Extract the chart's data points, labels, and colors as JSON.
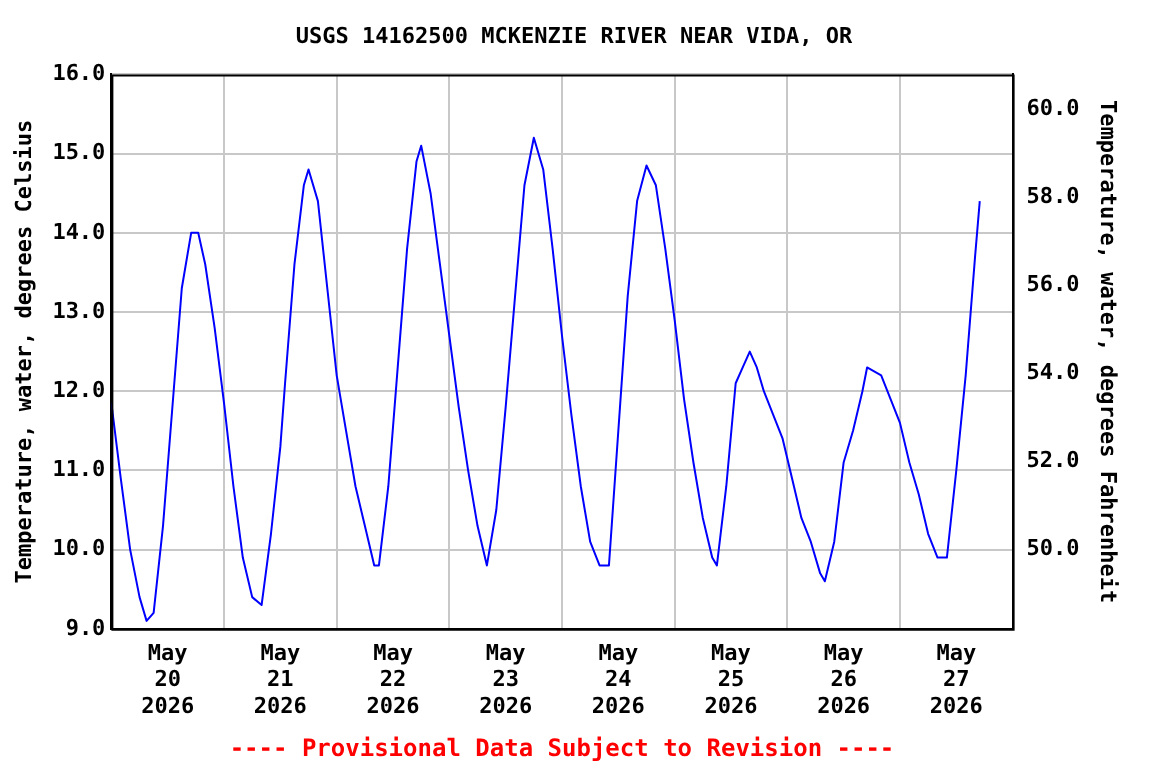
{
  "chart_data": {
    "type": "line",
    "title": "USGS 14162500 MCKENZIE RIVER NEAR VIDA, OR",
    "ylabel": "Temperature, water, degrees Celsius",
    "y2label": "Temperature, water, degrees Fahrenheit",
    "annotations": [
      "---- Provisional Data Subject to Revision ----"
    ],
    "grid": true,
    "legend": false,
    "marker": "none",
    "line_style": "solid",
    "xlim": [
      "2026-05-20",
      "2026-05-28"
    ],
    "xticks": [
      {
        "value": "2026-05-20T12:00",
        "label": "May 20 2026"
      },
      {
        "value": "2026-05-21",
        "label": null
      },
      {
        "value": "2026-05-21T12:00",
        "label": "May 21 2026"
      },
      {
        "value": "2026-05-22",
        "label": null
      },
      {
        "value": "2026-05-22T12:00",
        "label": "May 22 2026"
      },
      {
        "value": "2026-05-23",
        "label": null
      },
      {
        "value": "2026-05-23T12:00",
        "label": "May 23 2026"
      },
      {
        "value": "2026-05-24",
        "label": null
      },
      {
        "value": "2026-05-24T12:00",
        "label": "May 24 2026"
      },
      {
        "value": "2026-05-25",
        "label": null
      },
      {
        "value": "2026-05-25T12:00",
        "label": "May 25 2026"
      },
      {
        "value": "2026-05-26",
        "label": null
      },
      {
        "value": "2026-05-26T12:00",
        "label": "May 26 2026"
      },
      {
        "value": "2026-05-27",
        "label": null
      },
      {
        "value": "2026-05-27T12:00",
        "label": "May 27 2026"
      }
    ],
    "ylim": [
      9,
      16
    ],
    "yticks": [
      {
        "value": 9,
        "label": "9.0"
      },
      {
        "value": 10,
        "label": "10.0"
      },
      {
        "value": 11,
        "label": "11.0"
      },
      {
        "value": 12,
        "label": "12.0"
      },
      {
        "value": 13,
        "label": "13.0"
      },
      {
        "value": 14,
        "label": "14.0"
      },
      {
        "value": 15,
        "label": "15.0"
      },
      {
        "value": 16,
        "label": "16.0"
      }
    ],
    "y2lim": [
      48.2,
      60.8
    ],
    "y2ticks": [
      {
        "value": 50,
        "label": "50.0"
      },
      {
        "value": 52,
        "label": "52.0"
      },
      {
        "value": 54,
        "label": "54.0"
      },
      {
        "value": 56,
        "label": "56.0"
      },
      {
        "value": 58,
        "label": "58.0"
      },
      {
        "value": 60,
        "label": "60.0"
      }
    ],
    "series": [
      {
        "color": "#0000ff",
        "x": [
          "2026-05-20T00:00",
          "2026-05-20T02:00",
          "2026-05-20T04:00",
          "2026-05-20T06:00",
          "2026-05-20T07:30",
          "2026-05-20T09:00",
          "2026-05-20T11:00",
          "2026-05-20T13:00",
          "2026-05-20T15:00",
          "2026-05-20T17:00",
          "2026-05-20T18:30",
          "2026-05-20T20:00",
          "2026-05-20T22:00",
          "2026-05-21T00:00",
          "2026-05-21T02:00",
          "2026-05-21T04:00",
          "2026-05-21T06:00",
          "2026-05-21T08:00",
          "2026-05-21T10:00",
          "2026-05-21T12:00",
          "2026-05-21T13:00",
          "2026-05-21T15:00",
          "2026-05-21T17:00",
          "2026-05-21T18:00",
          "2026-05-21T20:00",
          "2026-05-21T22:00",
          "2026-05-22T00:00",
          "2026-05-22T02:00",
          "2026-05-22T04:00",
          "2026-05-22T06:00",
          "2026-05-22T08:00",
          "2026-05-22T09:00",
          "2026-05-22T11:00",
          "2026-05-22T13:00",
          "2026-05-22T15:00",
          "2026-05-22T17:00",
          "2026-05-22T18:00",
          "2026-05-22T20:00",
          "2026-05-22T22:00",
          "2026-05-23T00:00",
          "2026-05-23T02:00",
          "2026-05-23T04:00",
          "2026-05-23T06:00",
          "2026-05-23T08:00",
          "2026-05-23T10:00",
          "2026-05-23T12:00",
          "2026-05-23T14:00",
          "2026-05-23T16:00",
          "2026-05-23T18:00",
          "2026-05-23T20:00",
          "2026-05-23T22:00",
          "2026-05-24T00:00",
          "2026-05-24T02:00",
          "2026-05-24T04:00",
          "2026-05-24T06:00",
          "2026-05-24T08:00",
          "2026-05-24T10:00",
          "2026-05-24T12:00",
          "2026-05-24T14:00",
          "2026-05-24T16:00",
          "2026-05-24T18:00",
          "2026-05-24T20:00",
          "2026-05-24T22:00",
          "2026-05-25T00:00",
          "2026-05-25T02:00",
          "2026-05-25T04:00",
          "2026-05-25T06:00",
          "2026-05-25T08:00",
          "2026-05-25T09:00",
          "2026-05-25T11:00",
          "2026-05-25T13:00",
          "2026-05-25T14:30",
          "2026-05-25T16:00",
          "2026-05-25T17:30",
          "2026-05-25T19:00",
          "2026-05-25T21:00",
          "2026-05-25T23:00",
          "2026-05-26T01:00",
          "2026-05-26T03:00",
          "2026-05-26T05:00",
          "2026-05-26T07:00",
          "2026-05-26T08:00",
          "2026-05-26T10:00",
          "2026-05-26T12:00",
          "2026-05-26T14:00",
          "2026-05-26T16:00",
          "2026-05-26T17:00",
          "2026-05-26T20:00",
          "2026-05-26T22:00",
          "2026-05-27T00:00",
          "2026-05-27T02:00",
          "2026-05-27T04:00",
          "2026-05-27T06:00",
          "2026-05-27T08:00",
          "2026-05-27T10:00",
          "2026-05-27T12:00",
          "2026-05-27T14:00",
          "2026-05-27T16:00",
          "2026-05-27T17:00"
        ],
        "values": [
          11.85,
          10.9,
          10.0,
          9.4,
          9.1,
          9.2,
          10.3,
          11.8,
          13.3,
          14.0,
          14.0,
          13.6,
          12.8,
          11.85,
          10.8,
          9.9,
          9.4,
          9.3,
          10.2,
          11.3,
          12.1,
          13.6,
          14.6,
          14.8,
          14.4,
          13.3,
          12.2,
          11.5,
          10.8,
          10.3,
          9.8,
          9.8,
          10.8,
          12.3,
          13.8,
          14.9,
          15.1,
          14.5,
          13.6,
          12.7,
          11.8,
          11.0,
          10.3,
          9.8,
          10.5,
          11.8,
          13.2,
          14.6,
          15.2,
          14.8,
          13.8,
          12.7,
          11.7,
          10.8,
          10.1,
          9.8,
          9.8,
          11.5,
          13.2,
          14.4,
          14.85,
          14.6,
          13.8,
          12.9,
          11.9,
          11.1,
          10.4,
          9.9,
          9.8,
          10.8,
          12.1,
          12.3,
          12.5,
          12.3,
          12.0,
          11.7,
          11.4,
          10.9,
          10.4,
          10.1,
          9.7,
          9.6,
          10.1,
          11.1,
          11.5,
          12.0,
          12.3,
          12.2,
          11.9,
          11.6,
          11.1,
          10.7,
          10.2,
          9.9,
          9.9,
          11.0,
          12.2,
          13.7,
          14.4
        ]
      }
    ]
  }
}
